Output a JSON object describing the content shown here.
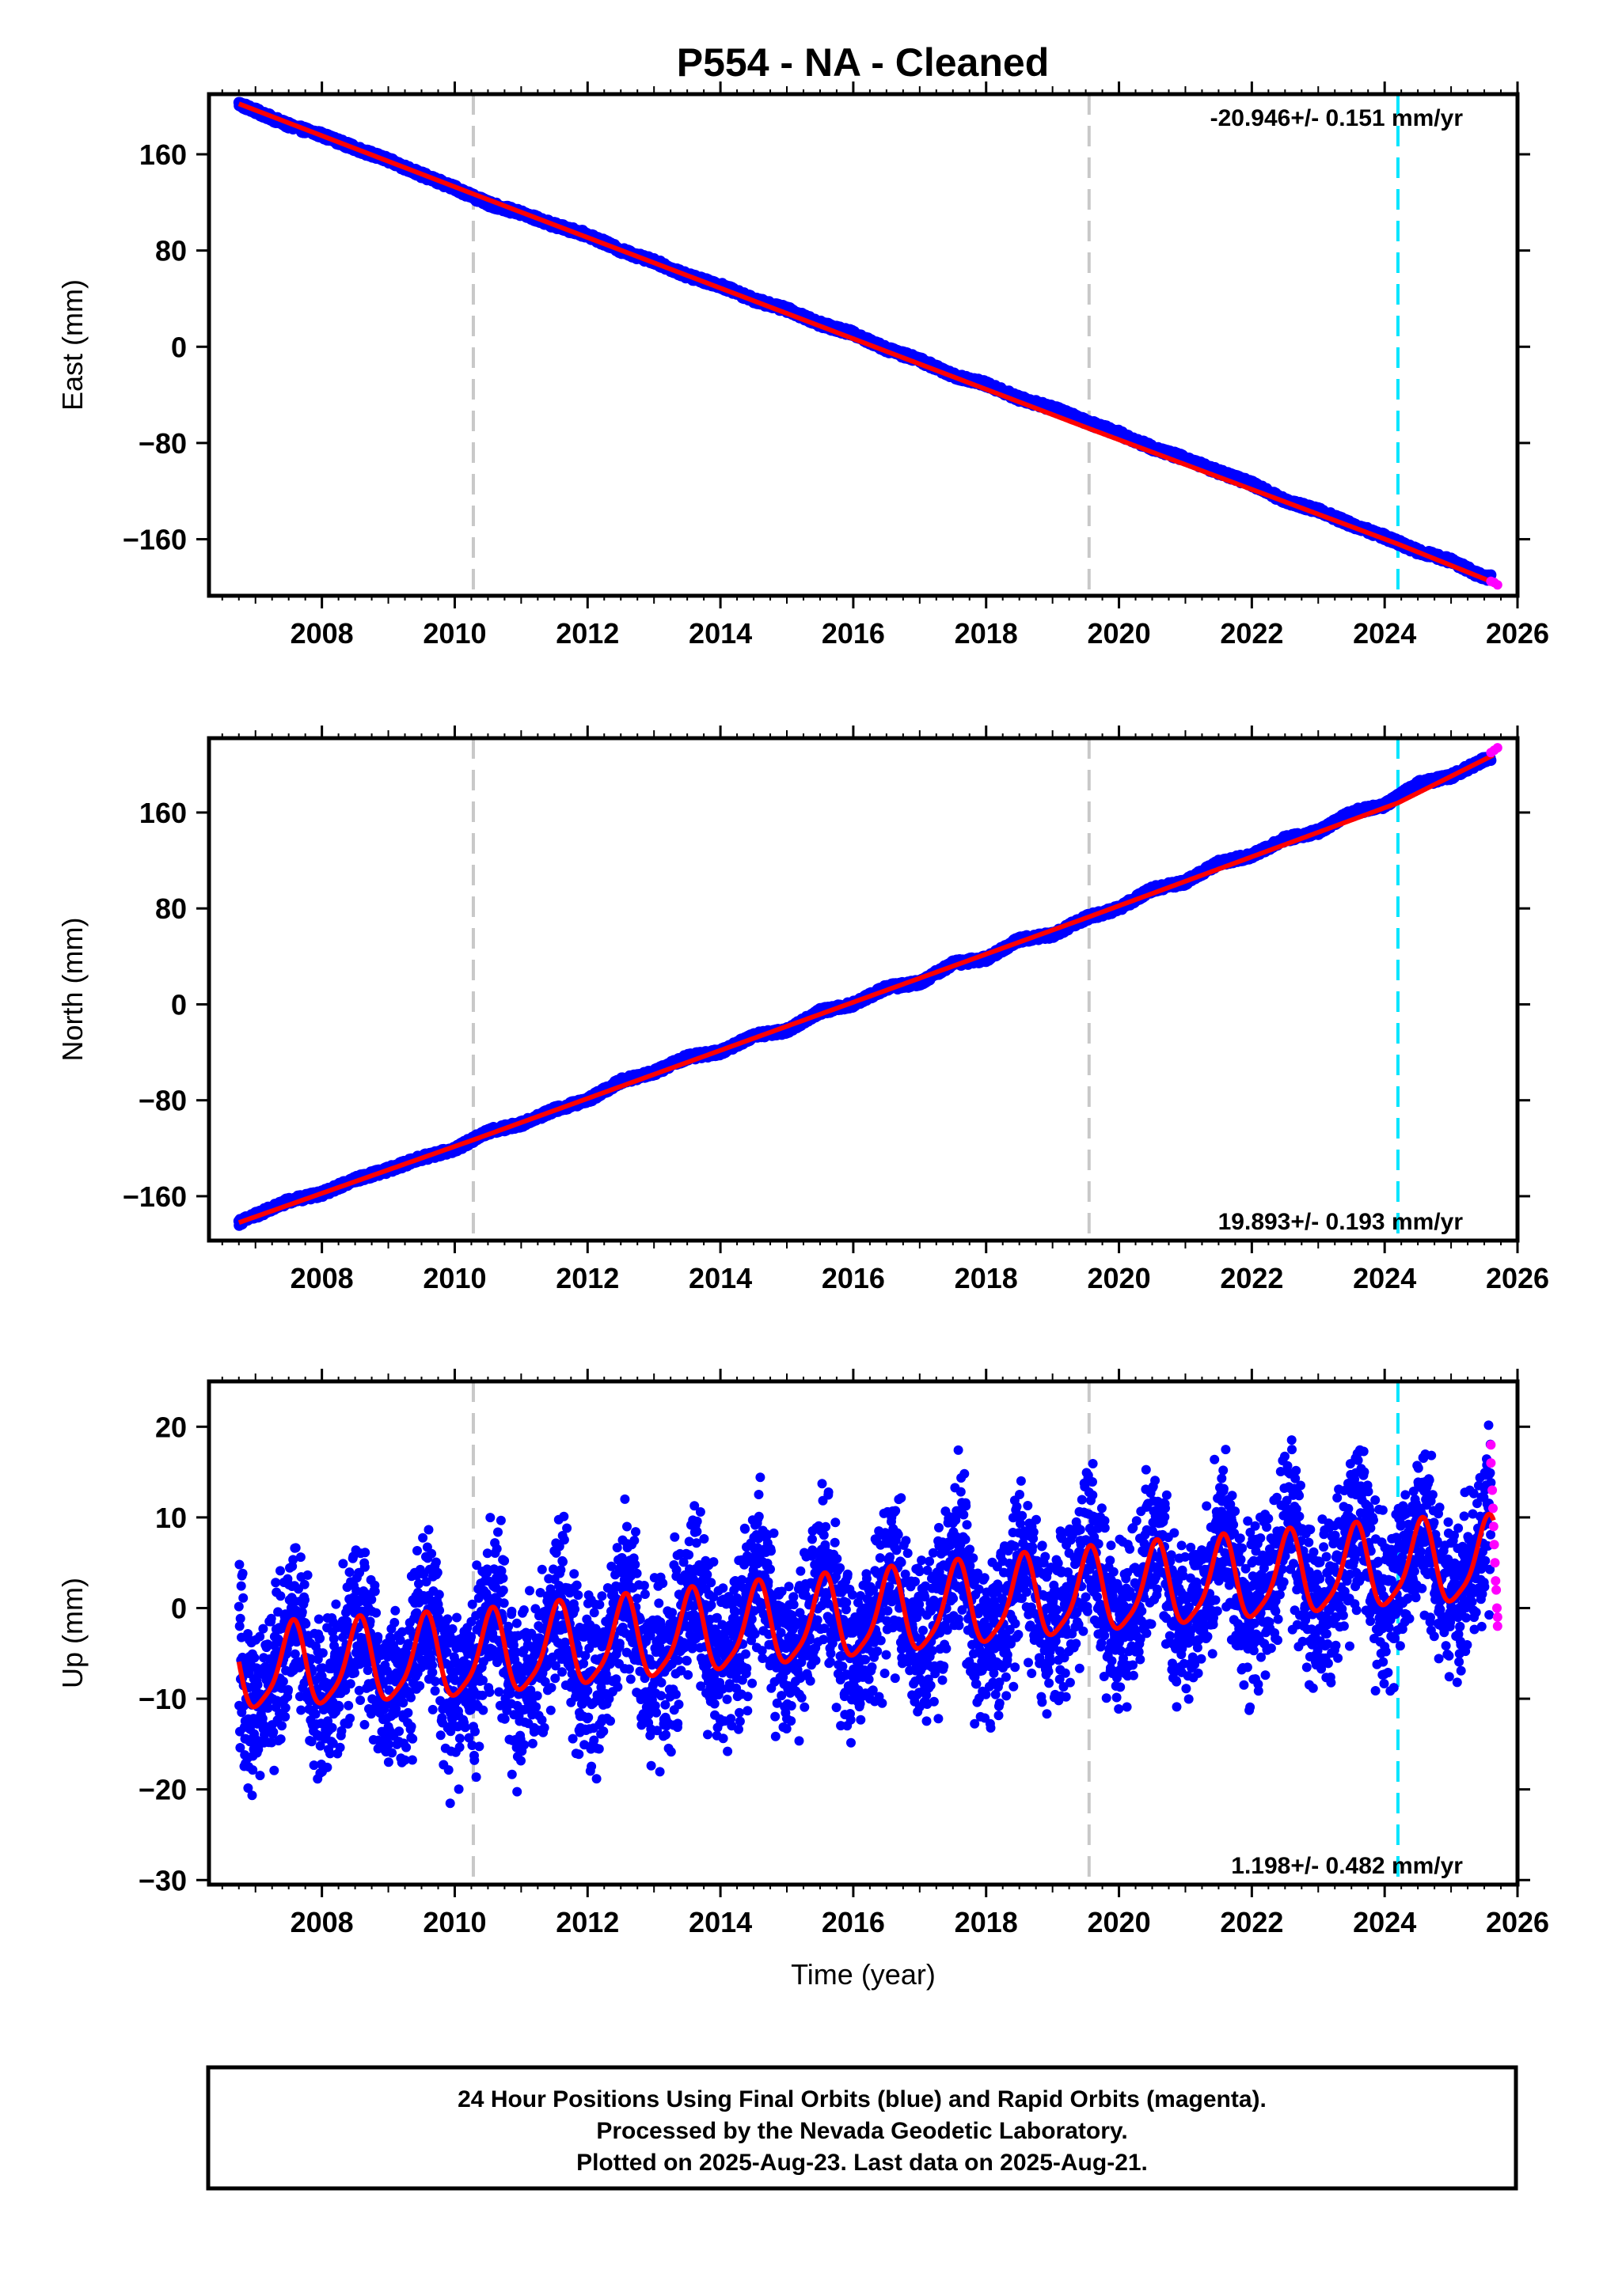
{
  "title": "P554  - NA - Cleaned",
  "footer": {
    "lines": [
      "24 Hour Positions Using Final Orbits (blue) and Rapid Orbits (magenta).",
      "Processed by the Nevada Geodetic Laboratory.",
      "Plotted on 2025-Aug-23. Last data on 2025-Aug-21."
    ]
  },
  "colors": {
    "final_orbits": "#0000ff",
    "rapid_orbits": "#ff00ff",
    "model_fit": "#ff0000",
    "equipment_change": "#c8c8c8",
    "other_event": "#00e5ff"
  },
  "chart_data": [
    {
      "type": "scatter",
      "panel": "east",
      "ylabel": "East (mm)",
      "xlabel": "",
      "xlim": [
        2006.3,
        2026.0
      ],
      "ylim": [
        -207,
        210
      ],
      "xticks": [
        2008,
        2010,
        2012,
        2014,
        2016,
        2018,
        2020,
        2022,
        2024,
        2026
      ],
      "yticks": [
        -160,
        -80,
        0,
        80,
        160
      ],
      "rate_label": "-20.946+/- 0.151 mm/yr",
      "rate_position": "top-right",
      "series": [
        {
          "role": "final_orbits",
          "x": [
            2006.75,
            2007.0,
            2007.5,
            2008.0,
            2008.5,
            2009.0,
            2009.5,
            2010.0,
            2010.5,
            2011.0,
            2011.5,
            2012.0,
            2012.5,
            2013.0,
            2013.5,
            2014.0,
            2014.5,
            2015.0,
            2015.5,
            2016.0,
            2016.5,
            2017.0,
            2017.5,
            2018.0,
            2018.5,
            2019.0,
            2019.5,
            2020.0,
            2020.5,
            2021.0,
            2021.5,
            2022.0,
            2022.5,
            2023.0,
            2023.5,
            2024.0,
            2024.5,
            2025.0,
            2025.5
          ],
          "y": [
            202,
            196,
            184,
            176,
            165,
            155,
            143,
            132,
            119,
            111,
            101,
            93,
            80,
            71,
            59,
            51,
            39,
            31,
            19,
            11,
            -2,
            -11,
            -24,
            -31,
            -43,
            -51,
            -62,
            -72,
            -84,
            -93,
            -104,
            -114,
            -128,
            -136,
            -148,
            -158,
            -170,
            -178,
            -192
          ]
        },
        {
          "role": "rapid_orbits",
          "x": [
            2025.6,
            2025.65,
            2025.7
          ],
          "y": [
            -195,
            -196,
            -198
          ]
        }
      ],
      "model": {
        "role": "model_fit",
        "x": [
          2006.75,
          2010.28,
          2019.55,
          2024.2,
          2025.64
        ],
        "y": [
          202,
          127,
          -68,
          -164,
          -196
        ]
      },
      "events": [
        {
          "role": "equipment_change",
          "x": 2010.28
        },
        {
          "role": "equipment_change",
          "x": 2019.55
        },
        {
          "role": "other_event",
          "x": 2024.2
        }
      ]
    },
    {
      "type": "scatter",
      "panel": "north",
      "ylabel": "North (mm)",
      "xlabel": "",
      "xlim": [
        2006.3,
        2026.0
      ],
      "ylim": [
        -197,
        222
      ],
      "xticks": [
        2008,
        2010,
        2012,
        2014,
        2016,
        2018,
        2020,
        2022,
        2024,
        2026
      ],
      "yticks": [
        -160,
        -80,
        0,
        80,
        160
      ],
      "rate_label": "19.893+/- 0.193 mm/yr",
      "rate_position": "bottom-right",
      "series": [
        {
          "role": "final_orbits",
          "x": [
            2006.75,
            2007.0,
            2007.5,
            2008.0,
            2008.5,
            2009.0,
            2009.5,
            2010.0,
            2010.5,
            2011.0,
            2011.5,
            2012.0,
            2012.5,
            2013.0,
            2013.5,
            2014.0,
            2014.5,
            2015.0,
            2015.5,
            2016.0,
            2016.5,
            2017.0,
            2017.5,
            2018.0,
            2018.5,
            2019.0,
            2019.5,
            2020.0,
            2020.5,
            2021.0,
            2021.5,
            2022.0,
            2022.5,
            2023.0,
            2023.5,
            2024.0,
            2024.5,
            2025.0,
            2025.5
          ],
          "y": [
            -182,
            -176,
            -164,
            -158,
            -146,
            -138,
            -128,
            -121,
            -106,
            -100,
            -88,
            -80,
            -64,
            -57,
            -44,
            -40,
            -26,
            -22,
            -6,
            0,
            14,
            18,
            34,
            38,
            54,
            58,
            72,
            80,
            96,
            102,
            118,
            124,
            138,
            144,
            160,
            166,
            184,
            190,
            204
          ]
        },
        {
          "role": "rapid_orbits",
          "x": [
            2025.6,
            2025.65,
            2025.7
          ],
          "y": [
            210,
            212,
            214
          ]
        }
      ],
      "model": {
        "role": "model_fit",
        "x": [
          2006.75,
          2010.28,
          2019.55,
          2024.2,
          2025.64
        ],
        "y": [
          -182,
          -113,
          73,
          168,
          208
        ]
      },
      "events": [
        {
          "role": "equipment_change",
          "x": 2010.28
        },
        {
          "role": "equipment_change",
          "x": 2019.55
        },
        {
          "role": "other_event",
          "x": 2024.2
        }
      ]
    },
    {
      "type": "scatter",
      "panel": "up",
      "ylabel": "Up (mm)",
      "xlabel": "Time (year)",
      "xlim": [
        2006.3,
        2026.0
      ],
      "ylim": [
        -30.5,
        25
      ],
      "xticks": [
        2008,
        2010,
        2012,
        2014,
        2016,
        2018,
        2020,
        2022,
        2024,
        2026
      ],
      "yticks": [
        -30,
        -20,
        -10,
        0,
        10,
        20
      ],
      "rate_label": "1.198+/- 0.482 mm/yr",
      "rate_position": "bottom-right",
      "series": [
        {
          "role": "final_orbits",
          "x": [
            2006.75,
            2007.0,
            2007.25,
            2007.5,
            2007.75,
            2008.0,
            2008.25,
            2008.5,
            2008.75,
            2009.0,
            2009.25,
            2009.5,
            2009.75,
            2010.0,
            2010.25,
            2010.5,
            2010.75,
            2011.0,
            2011.25,
            2011.5,
            2011.75,
            2012.0,
            2012.25,
            2012.5,
            2012.75,
            2013.0,
            2013.25,
            2013.5,
            2013.75,
            2014.0,
            2014.25,
            2014.5,
            2014.75,
            2015.0,
            2015.25,
            2015.5,
            2015.75,
            2016.0,
            2016.25,
            2016.5,
            2016.75,
            2017.0,
            2017.25,
            2017.5,
            2017.75,
            2018.0,
            2018.25,
            2018.5,
            2018.75,
            2019.0,
            2019.25,
            2019.5,
            2019.75,
            2020.0,
            2020.25,
            2020.5,
            2020.75,
            2021.0,
            2021.25,
            2021.5,
            2021.75,
            2022.0,
            2022.25,
            2022.5,
            2022.75,
            2023.0,
            2023.25,
            2023.5,
            2023.75,
            2024.0,
            2024.25,
            2024.5,
            2024.75,
            2025.0,
            2025.25,
            2025.5
          ],
          "y": [
            -5,
            -9,
            -12,
            -6,
            -3,
            -8,
            -11,
            -5,
            -2,
            -7,
            -10,
            -4,
            -1,
            -6,
            -11,
            -4,
            -2,
            -6,
            -10,
            -4,
            0,
            -5,
            -9,
            -2,
            1,
            -4,
            -7,
            0,
            2,
            -3,
            -6,
            1,
            3,
            -2,
            -5,
            2,
            4,
            -1,
            -3,
            3,
            5,
            0,
            -2,
            5,
            6,
            1,
            -1,
            6,
            8,
            3,
            0,
            7,
            6,
            2,
            -1,
            6,
            8,
            4,
            0,
            7,
            9,
            5,
            1,
            8,
            10,
            6,
            2,
            8,
            10,
            5,
            -2,
            4,
            6,
            1,
            -1,
            4
          ]
        },
        {
          "role": "rapid_orbits",
          "x": [
            2025.6,
            2025.6,
            2025.62,
            2025.63,
            2025.64,
            2025.65,
            2025.66,
            2025.67,
            2025.68,
            2025.69,
            2025.7,
            2025.7
          ],
          "y": [
            18,
            16,
            13,
            11,
            9,
            7,
            5,
            3,
            2,
            0,
            -1,
            -2
          ]
        }
      ],
      "model": {
        "role": "model_fit",
        "annual_amplitude_mm": 4.5,
        "semiannual_amplitude_mm": 1.0,
        "x": [
          2006.75,
          2010.28,
          2019.55,
          2024.2,
          2025.64
        ],
        "y": [
          -7,
          -5.5,
          1.5,
          4.5,
          5
        ]
      },
      "events": [
        {
          "role": "equipment_change",
          "x": 2010.28
        },
        {
          "role": "equipment_change",
          "x": 2019.55
        },
        {
          "role": "other_event",
          "x": 2024.2
        }
      ]
    }
  ]
}
